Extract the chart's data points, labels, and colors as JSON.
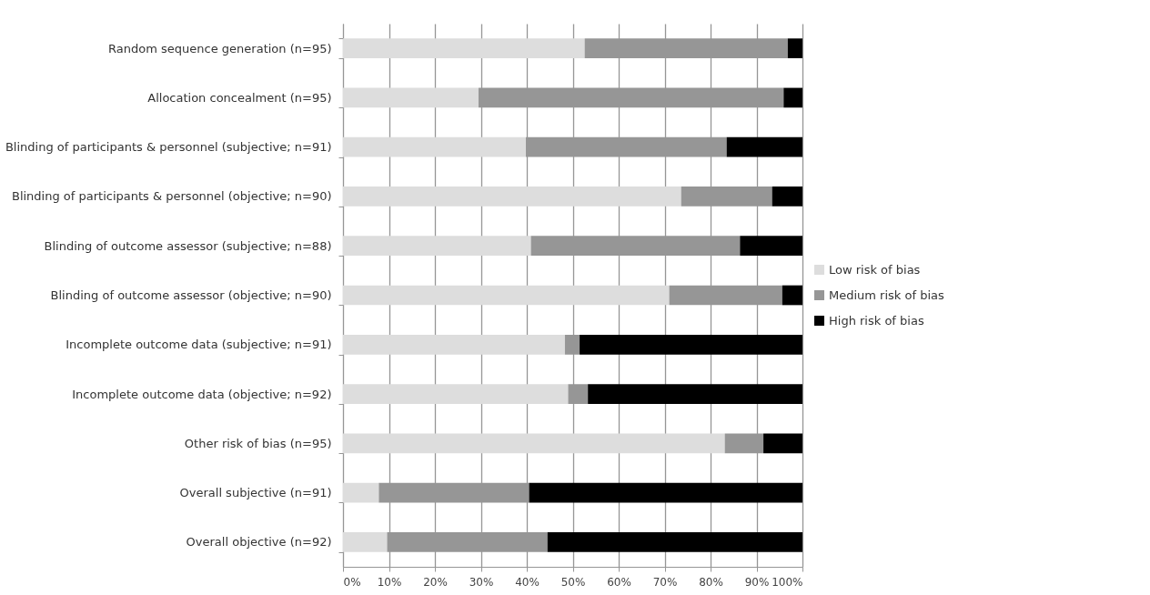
{
  "chart_data": {
    "type": "bar",
    "orientation": "horizontal",
    "stacked": true,
    "categories": [
      "Random sequence generation (n=95)",
      "Allocation concealment (n=95)",
      "Blinding of participants & personnel (subjective; n=91)",
      "Blinding of participants & personnel (objective; n=90)",
      "Blinding of outcome assessor (subjective; n=88)",
      "Blinding of outcome assessor (objective; n=90)",
      "Incomplete outcome data (subjective; n=91)",
      "Incomplete outcome data (objective; n=92)",
      "Other risk of bias (n=95)",
      "Overall subjective (n=91)",
      "Overall objective (n=92)"
    ],
    "series": [
      {
        "name": "Low risk of bias",
        "color": "#dddddd",
        "values": [
          52.6,
          29.5,
          39.8,
          73.6,
          40.9,
          71.0,
          48.3,
          49.0,
          83.1,
          7.8,
          9.6
        ]
      },
      {
        "name": "Medium risk of bias",
        "color": "#969696",
        "values": [
          44.2,
          66.4,
          43.7,
          19.8,
          45.5,
          24.6,
          3.2,
          4.3,
          8.4,
          32.7,
          34.9
        ]
      },
      {
        "name": "High risk of bias",
        "color": "#000000",
        "values": [
          3.2,
          4.1,
          16.5,
          6.6,
          13.6,
          4.4,
          48.5,
          46.7,
          8.5,
          59.5,
          55.5
        ]
      }
    ],
    "xlim": [
      0,
      100
    ],
    "xticks": [
      {
        "value": 0,
        "label": "0%"
      },
      {
        "value": 10,
        "label": "10%"
      },
      {
        "value": 20,
        "label": "20%"
      },
      {
        "value": 30,
        "label": "30%"
      },
      {
        "value": 40,
        "label": "40%"
      },
      {
        "value": 50,
        "label": "50%"
      },
      {
        "value": 60,
        "label": "60%"
      },
      {
        "value": 70,
        "label": "70%"
      },
      {
        "value": 80,
        "label": "80%"
      },
      {
        "value": 90,
        "label": "90%"
      },
      {
        "value": 100,
        "label": "100%"
      }
    ],
    "grid": "x",
    "legend": "right"
  }
}
